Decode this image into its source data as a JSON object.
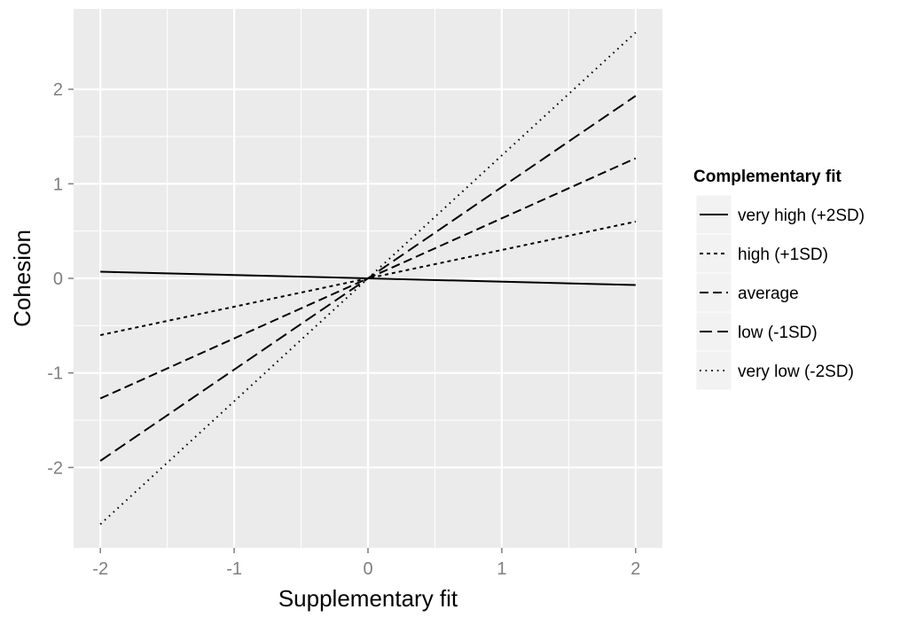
{
  "chart_data": {
    "type": "line",
    "xlabel": "Supplementary fit",
    "ylabel": "Cohesion",
    "xlim": [
      -2.2,
      2.2
    ],
    "ylim": [
      -2.85,
      2.85
    ],
    "x_ticks": [
      -2,
      -1,
      0,
      1,
      2
    ],
    "x_tick_labels": [
      "-2",
      "-1",
      "0",
      "1",
      "2"
    ],
    "y_ticks": [
      -2,
      -1,
      0,
      1,
      2
    ],
    "y_tick_labels": [
      "-2",
      "-1",
      "0",
      "1",
      "2"
    ],
    "grid": true,
    "legend": {
      "title": "Complementary fit",
      "position": "right"
    },
    "series": [
      {
        "name": "very high (+2SD)",
        "linetype": "solid",
        "x": [
          -2,
          0,
          2
        ],
        "y": [
          0.07,
          0.0,
          -0.07
        ]
      },
      {
        "name": "high (+1SD)",
        "linetype": "short-dash",
        "x": [
          -2,
          0,
          2
        ],
        "y": [
          -0.6,
          0.0,
          0.6
        ]
      },
      {
        "name": "average",
        "linetype": "dash",
        "x": [
          -2,
          0,
          2
        ],
        "y": [
          -1.27,
          0.0,
          1.27
        ]
      },
      {
        "name": "low (-1SD)",
        "linetype": "long-dash",
        "x": [
          -2,
          0,
          2
        ],
        "y": [
          -1.93,
          0.0,
          1.93
        ]
      },
      {
        "name": "very low (-2SD)",
        "linetype": "dotted",
        "x": [
          -2,
          0,
          2
        ],
        "y": [
          -2.6,
          0.0,
          2.6
        ]
      }
    ],
    "colors": {
      "panel": "#ebebeb",
      "grid": "#ffffff",
      "line": "#000000",
      "legend_key": "#f2f2f2",
      "tick_text": "#7f7f7f"
    }
  }
}
